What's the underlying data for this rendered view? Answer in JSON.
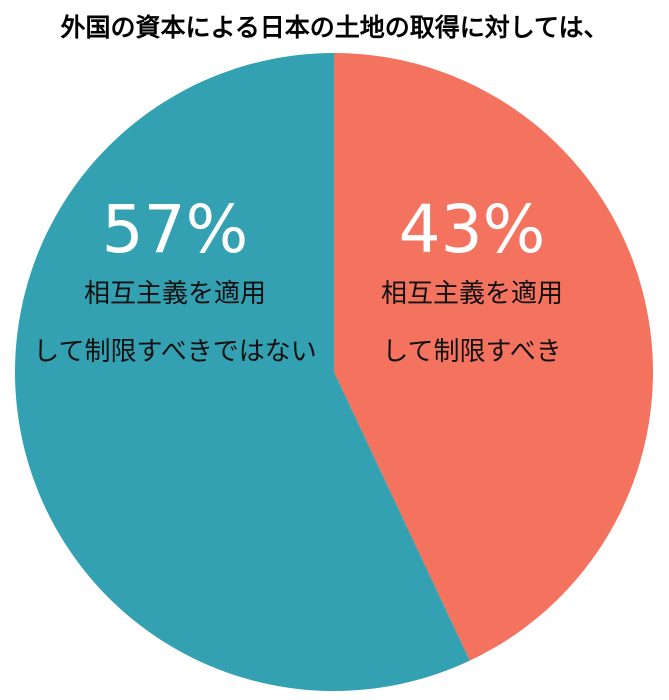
{
  "chart_data": {
    "type": "pie",
    "title": "外国の資本による日本の土地の取得に対しては、",
    "categories": [
      "相互主義を適用\nして制限すべき",
      "相互主義を適用\nして制限すべきではない"
    ],
    "values": [
      43,
      57
    ],
    "value_labels": [
      "43%",
      "57%"
    ],
    "colors": [
      "#f4735f",
      "#33a1b1"
    ]
  }
}
